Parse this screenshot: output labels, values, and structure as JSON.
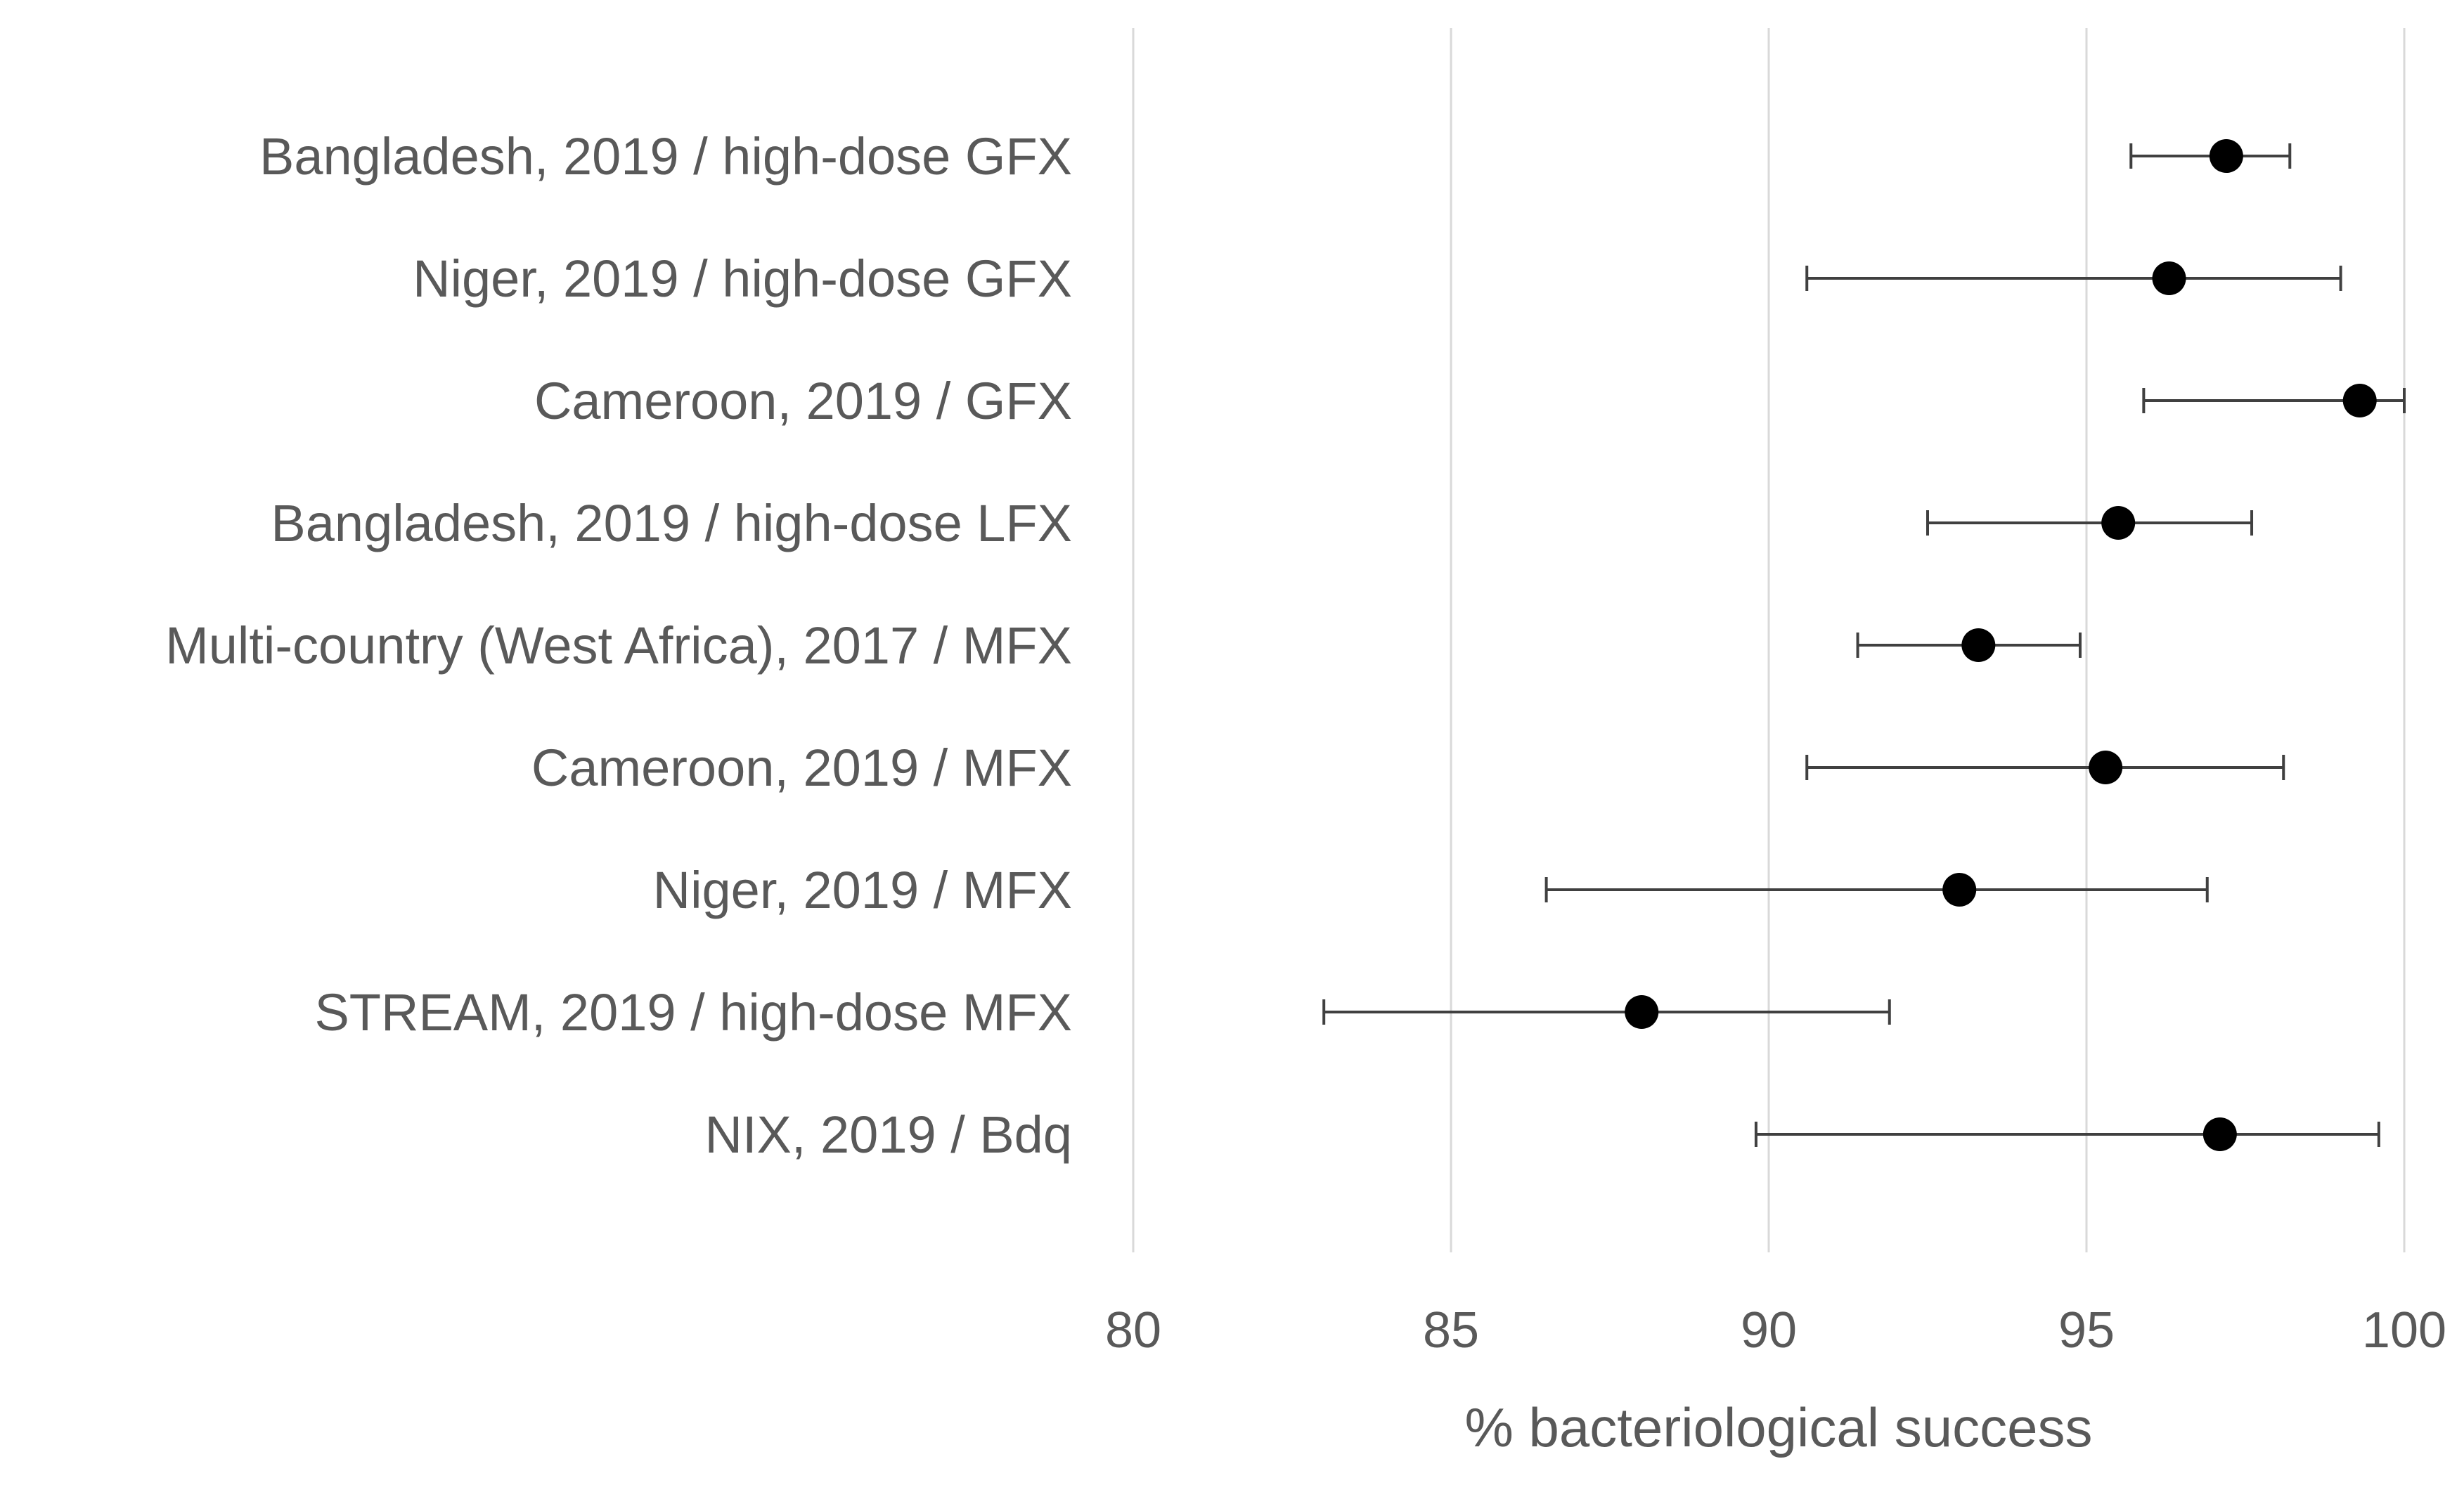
{
  "chart_data": {
    "type": "scatter",
    "subtype": "forest-plot",
    "title": "",
    "xlabel": "% bacteriological success",
    "ylabel": "",
    "xlim": [
      80,
      100
    ],
    "xticks": [
      "80",
      "85",
      "90",
      "95",
      "100"
    ],
    "grid": true,
    "point_color": "#000000",
    "errorbar_color": "#404040",
    "grid_color": "#d9d9d9",
    "text_color": "#595959",
    "rows": [
      {
        "label": "Bangladesh, 2019 / high-dose GFX",
        "value": 97.2,
        "lower": 95.7,
        "upper": 98.2
      },
      {
        "label": "Niger, 2019 / high-dose GFX",
        "value": 96.3,
        "lower": 90.6,
        "upper": 99.0
      },
      {
        "label": "Cameroon, 2019 / GFX",
        "value": 99.3,
        "lower": 95.9,
        "upper": 100.0
      },
      {
        "label": "Bangladesh, 2019 / high-dose LFX",
        "value": 95.5,
        "lower": 92.5,
        "upper": 97.6
      },
      {
        "label": "Multi-country (West Africa), 2017 / MFX",
        "value": 93.3,
        "lower": 91.4,
        "upper": 94.9
      },
      {
        "label": "Cameroon, 2019 / MFX",
        "value": 95.3,
        "lower": 90.6,
        "upper": 98.1
      },
      {
        "label": "Niger, 2019 / MFX",
        "value": 93.0,
        "lower": 86.5,
        "upper": 96.9
      },
      {
        "label": "STREAM, 2019 / high-dose MFX",
        "value": 88.0,
        "lower": 83.0,
        "upper": 91.9
      },
      {
        "label": "NIX, 2019 / Bdq",
        "value": 97.1,
        "lower": 89.8,
        "upper": 99.6
      }
    ]
  }
}
